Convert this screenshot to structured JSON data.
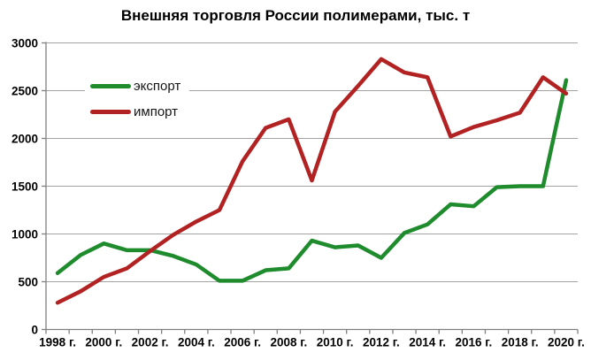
{
  "chart_data": {
    "type": "line",
    "title": "Внешняя торговля России полимерами, тыс. т",
    "x": [
      1998,
      1999,
      2000,
      2001,
      2002,
      2003,
      2004,
      2005,
      2006,
      2007,
      2008,
      2009,
      2010,
      2011,
      2012,
      2013,
      2014,
      2015,
      2016,
      2017,
      2018,
      2019,
      2020
    ],
    "series": [
      {
        "name": "экспорт",
        "color": "#1E8B2D",
        "values": [
          590,
          780,
          900,
          830,
          830,
          770,
          680,
          510,
          510,
          620,
          640,
          930,
          860,
          880,
          750,
          1010,
          1100,
          1310,
          1290,
          1490,
          1500,
          1500,
          2610
        ]
      },
      {
        "name": "импорт",
        "color": "#B22222",
        "values": [
          280,
          400,
          550,
          640,
          820,
          990,
          1130,
          1250,
          1760,
          2110,
          2200,
          1560,
          2280,
          2550,
          2830,
          2690,
          2640,
          2020,
          2120,
          2190,
          2270,
          2640,
          2470
        ]
      }
    ],
    "ylim": [
      0,
      3000
    ],
    "yticks": [
      0,
      500,
      1000,
      1500,
      2000,
      2500,
      3000
    ],
    "xtick_labels": [
      "1998 г.",
      "2000 г.",
      "2002 г.",
      "2004 г.",
      "2006 г.",
      "2008 г.",
      "2010 г.",
      "2012 г.",
      "2014 г.",
      "2016 г.",
      "2018 г.",
      "2020 г."
    ],
    "xlabel": "",
    "ylabel": "",
    "grid": "horizontal",
    "grid_color": "#A3A3A3",
    "axis_color": "#7F7F7F",
    "text_color": "#000000",
    "legend_position": "top-left"
  }
}
